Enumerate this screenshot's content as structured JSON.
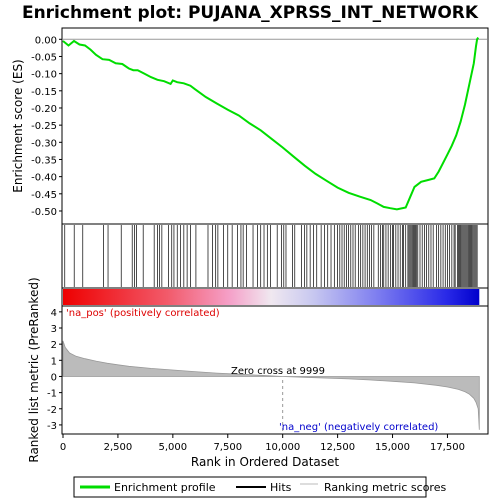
{
  "chart_data": {
    "type": "line",
    "title": "Enrichment plot: PUJANA_XPRSS_INT_NETWORK",
    "xlabel": "Rank in Ordered Dataset",
    "x_ticks": [
      "0",
      "2,500",
      "5,000",
      "7,500",
      "10,000",
      "12,500",
      "15,000",
      "17,500"
    ],
    "x_tick_values": [
      0,
      2500,
      5000,
      7500,
      10000,
      12500,
      15000,
      17500
    ],
    "xlim": [
      0,
      19300
    ],
    "es_panel": {
      "ylabel": "Enrichment score (ES)",
      "ylim": [
        -0.535,
        0.03
      ],
      "y_ticks": [
        "0.00",
        "-0.05",
        "-0.10",
        "-0.15",
        "-0.20",
        "-0.25",
        "-0.30",
        "-0.35",
        "-0.40",
        "-0.45",
        "-0.50"
      ],
      "y_tick_values": [
        0.0,
        -0.05,
        -0.1,
        -0.15,
        -0.2,
        -0.25,
        -0.3,
        -0.35,
        -0.4,
        -0.45,
        -0.5
      ],
      "series": {
        "name": "Enrichment profile",
        "color": "#00dd00",
        "x": [
          0,
          250,
          500,
          750,
          1000,
          1250,
          1500,
          1800,
          2100,
          2400,
          2700,
          3000,
          3200,
          3400,
          3700,
          4000,
          4300,
          4600,
          4900,
          5000,
          5200,
          5500,
          5800,
          6000,
          6500,
          7000,
          7500,
          8000,
          8500,
          9000,
          9500,
          10000,
          10500,
          11000,
          11500,
          12000,
          12500,
          13000,
          13500,
          14000,
          14300,
          14600,
          14900,
          15200,
          15600,
          15800,
          16000,
          16300,
          16600,
          16900,
          17100,
          17300,
          17500,
          17700,
          17900,
          18100,
          18300,
          18500,
          18700,
          18800,
          18850,
          18900
        ],
        "values": [
          -0.005,
          -0.018,
          -0.005,
          -0.015,
          -0.018,
          -0.03,
          -0.045,
          -0.058,
          -0.06,
          -0.07,
          -0.072,
          -0.085,
          -0.09,
          -0.09,
          -0.1,
          -0.11,
          -0.118,
          -0.122,
          -0.13,
          -0.12,
          -0.125,
          -0.128,
          -0.135,
          -0.145,
          -0.168,
          -0.187,
          -0.205,
          -0.222,
          -0.245,
          -0.265,
          -0.29,
          -0.315,
          -0.342,
          -0.368,
          -0.392,
          -0.412,
          -0.432,
          -0.447,
          -0.458,
          -0.468,
          -0.478,
          -0.488,
          -0.492,
          -0.495,
          -0.49,
          -0.46,
          -0.43,
          -0.415,
          -0.41,
          -0.405,
          -0.385,
          -0.36,
          -0.335,
          -0.31,
          -0.28,
          -0.24,
          -0.19,
          -0.13,
          -0.07,
          -0.02,
          0.0,
          0.005
        ]
      }
    },
    "hits": {
      "label": "Hits",
      "ranks": [
        80,
        510,
        900,
        1850,
        2050,
        2650,
        3150,
        3250,
        3350,
        3650,
        4150,
        4300,
        4400,
        4500,
        4800,
        4950,
        5050,
        5200,
        5350,
        5500,
        5650,
        5800,
        6050,
        6600,
        6800,
        6950,
        7050,
        7300,
        7500,
        7700,
        7950,
        8100,
        8200,
        8350,
        8650,
        8850,
        9000,
        9150,
        9300,
        9450,
        9750,
        9950,
        10050,
        10150,
        10450,
        10550,
        10850,
        11000,
        11100,
        11250,
        11400,
        11550,
        11750,
        11900,
        12050,
        12200,
        12350,
        12500,
        12600,
        12700,
        12800,
        12900,
        13000,
        13100,
        13200,
        13300,
        13450,
        13550,
        13650,
        13750,
        13850,
        13950,
        14050,
        14150,
        14350,
        14450,
        14550,
        14600,
        14700,
        14800,
        14900,
        15000,
        15050,
        15150,
        15250,
        15350,
        15450,
        15500,
        15600,
        15700,
        15750,
        15800,
        15850,
        15900,
        15950,
        16000,
        16050,
        16100,
        16150,
        16250,
        16350,
        16450,
        16550,
        16650,
        16750,
        16850,
        17000,
        17100,
        17200,
        17300,
        17400,
        17500,
        17600,
        17700,
        17800,
        17850,
        17950,
        18000,
        18050,
        18100,
        18150,
        18200,
        18250,
        18300,
        18350,
        18400,
        18450,
        18500,
        18550,
        18600,
        18650,
        18700,
        18750,
        18800,
        18850
      ]
    },
    "ranking_metric": {
      "label": "Ranking metric scores",
      "ylabel": "Ranked list metric (PreRanked)",
      "ylim": [
        -3.5,
        4.3
      ],
      "y_ticks": [
        "4",
        "3",
        "2",
        "1",
        "0",
        "-1",
        "-2",
        "-3"
      ],
      "y_tick_values": [
        4,
        3,
        2,
        1,
        0,
        -1,
        -2,
        -3
      ],
      "x": [
        0,
        100,
        300,
        600,
        1000,
        1500,
        2000,
        2500,
        3000,
        4000,
        5000,
        6000,
        7000,
        8000,
        9000,
        9999,
        11000,
        12000,
        13000,
        14000,
        15000,
        16000,
        17000,
        17500,
        18000,
        18300,
        18500,
        18700,
        18800,
        18900,
        18950
      ],
      "values": [
        2.2,
        1.8,
        1.45,
        1.25,
        1.1,
        0.95,
        0.82,
        0.72,
        0.63,
        0.5,
        0.4,
        0.3,
        0.21,
        0.14,
        0.07,
        0.0,
        -0.05,
        -0.1,
        -0.15,
        -0.22,
        -0.3,
        -0.4,
        -0.55,
        -0.65,
        -0.8,
        -0.95,
        -1.1,
        -1.35,
        -1.6,
        -2.0,
        -3.3
      ]
    },
    "annotations": {
      "pos_label": "'na_pos' (positively correlated)",
      "neg_label": "'na_neg' (negatively correlated)",
      "zero_cross": "Zero cross at 9999",
      "zero_cross_rank": 9999
    },
    "legend": {
      "placement": "bottom",
      "items": [
        {
          "label": "Enrichment profile",
          "color": "#00dd00"
        },
        {
          "label": "Hits",
          "color": "#000000"
        },
        {
          "label": "Ranking metric scores",
          "color": "#bbbbbb"
        }
      ]
    }
  }
}
